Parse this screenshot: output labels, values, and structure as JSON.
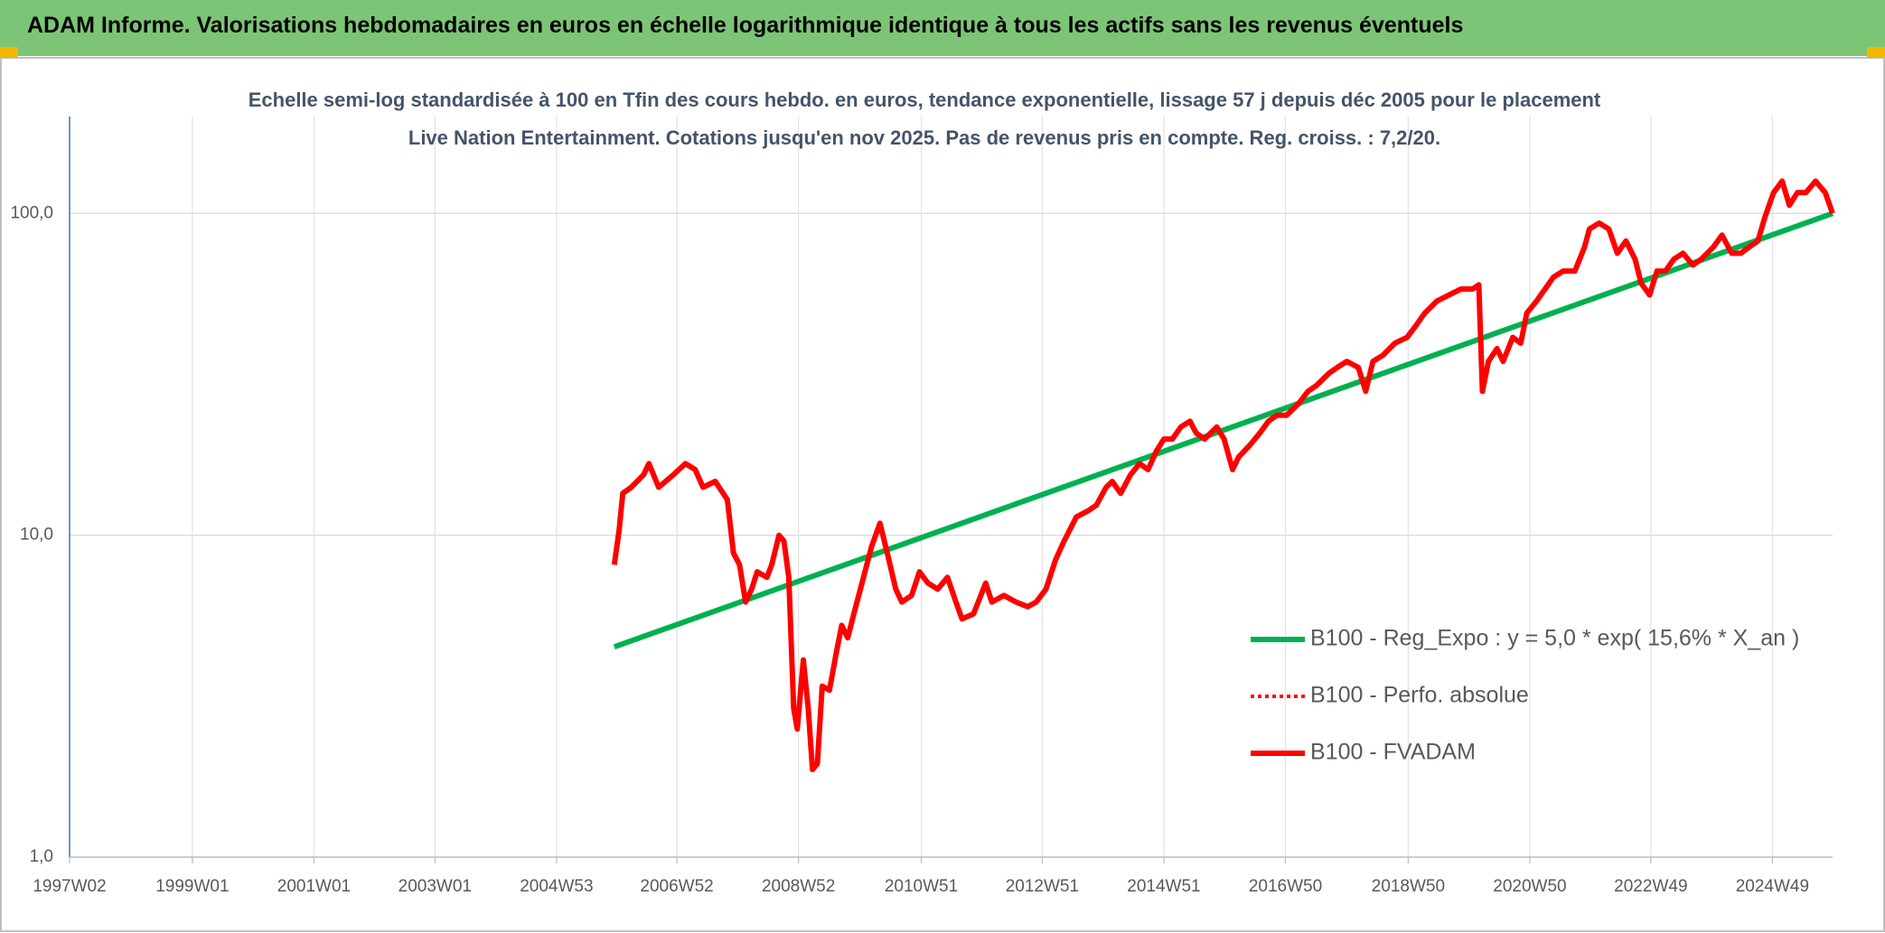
{
  "chart_data": {
    "type": "line",
    "title": "ADAM Informe. Valorisations hebdomadaires en euros en échelle logarithmique identique à tous les actifs sans les revenus éventuels",
    "subtitle": "Echelle semi-log standardisée à 100 en Tfin des cours hebdo. en euros, tendance exponentielle, lissage 57 j depuis déc 2005 pour le placement Live Nation Entertainment. Cotations jusqu'en nov 2025. Pas de revenus pris en compte. Reg. croiss. : 7,2/20.",
    "log_y": true,
    "grid": true,
    "legend": "right",
    "xlim": [
      1997.0,
      2026.0
    ],
    "ylim": [
      1,
      200
    ],
    "yticks": [
      {
        "value": 1,
        "label": "1,0"
      },
      {
        "value": 10,
        "label": "10,0"
      },
      {
        "value": 100,
        "label": "100,0"
      }
    ],
    "xticks": [
      {
        "value": 1997.0,
        "label": "1997W02"
      },
      {
        "value": 1999.02,
        "label": "1999W01"
      },
      {
        "value": 2001.02,
        "label": "2001W01"
      },
      {
        "value": 2003.01,
        "label": "2003W01"
      },
      {
        "value": 2005.01,
        "label": "2004W53"
      },
      {
        "value": 2006.99,
        "label": "2006W52"
      },
      {
        "value": 2008.99,
        "label": "2008W52"
      },
      {
        "value": 2011.01,
        "label": "2010W51"
      },
      {
        "value": 2013.0,
        "label": "2012W51"
      },
      {
        "value": 2015.0,
        "label": "2014W51"
      },
      {
        "value": 2017.0,
        "label": "2016W50"
      },
      {
        "value": 2019.02,
        "label": "2018W50"
      },
      {
        "value": 2021.02,
        "label": "2020W50"
      },
      {
        "value": 2023.01,
        "label": "2022W49"
      },
      {
        "value": 2025.01,
        "label": "2024W49"
      }
    ],
    "series": [
      {
        "name": "B100 - Reg_Expo : y = 5,0 * exp( 15,6% * X_an )",
        "color": "#00b050",
        "x": [
          2005.96,
          2026.0
        ],
        "values": [
          4.5,
          100
        ]
      },
      {
        "name": "B100 - Perfo. absolue",
        "color": "#ff0000",
        "dash": true
      },
      {
        "name": "B100 - FVADAM",
        "color": "#ff0000",
        "x": [
          2005.96,
          2006.04,
          2006.1,
          2006.24,
          2006.44,
          2006.53,
          2006.69,
          2006.93,
          2007.13,
          2007.29,
          2007.42,
          2007.62,
          2007.82,
          2007.92,
          2008.02,
          2008.12,
          2008.22,
          2008.31,
          2008.47,
          2008.55,
          2008.67,
          2008.75,
          2008.83,
          2008.91,
          2008.97,
          2009.07,
          2009.15,
          2009.22,
          2009.3,
          2009.38,
          2009.5,
          2009.6,
          2009.7,
          2009.8,
          2009.9,
          2010.06,
          2010.19,
          2010.33,
          2010.45,
          2010.59,
          2010.69,
          2010.85,
          2010.98,
          2011.12,
          2011.28,
          2011.44,
          2011.58,
          2011.68,
          2011.87,
          2012.07,
          2012.17,
          2012.37,
          2012.57,
          2012.76,
          2012.9,
          2013.06,
          2013.22,
          2013.36,
          2013.56,
          2013.75,
          2013.89,
          2014.05,
          2014.15,
          2014.29,
          2014.45,
          2014.6,
          2014.74,
          2014.88,
          2015.0,
          2015.14,
          2015.28,
          2015.43,
          2015.53,
          2015.67,
          2015.87,
          2015.99,
          2016.13,
          2016.23,
          2016.42,
          2016.58,
          2016.72,
          2016.86,
          2017.02,
          2017.22,
          2017.37,
          2017.51,
          2017.71,
          2017.85,
          2018.01,
          2018.2,
          2018.32,
          2018.44,
          2018.6,
          2018.8,
          2019.0,
          2019.15,
          2019.29,
          2019.49,
          2019.69,
          2019.89,
          2020.08,
          2020.18,
          2020.24,
          2020.34,
          2020.48,
          2020.58,
          2020.74,
          2020.87,
          2020.97,
          2021.13,
          2021.27,
          2021.41,
          2021.57,
          2021.76,
          2021.92,
          2022.0,
          2022.16,
          2022.32,
          2022.46,
          2022.6,
          2022.75,
          2022.85,
          2022.99,
          2023.11,
          2023.25,
          2023.39,
          2023.54,
          2023.7,
          2023.84,
          2024.04,
          2024.18,
          2024.34,
          2024.49,
          2024.63,
          2024.77,
          2024.89,
          2025.03,
          2025.17,
          2025.29,
          2025.42,
          2025.56,
          2025.72,
          2025.88,
          2026.0
        ],
        "values": [
          8.1,
          10.4,
          13.5,
          14.1,
          15.4,
          16.7,
          14.1,
          15.4,
          16.7,
          16,
          14.1,
          14.7,
          12.9,
          8.8,
          8.1,
          6.2,
          6.8,
          7.7,
          7.4,
          8.1,
          10,
          9.6,
          7.4,
          2.9,
          2.5,
          4.1,
          2.9,
          1.87,
          1.95,
          3.4,
          3.3,
          4.2,
          5.25,
          4.8,
          5.7,
          7.4,
          9.2,
          10.9,
          8.8,
          6.8,
          6.2,
          6.5,
          7.7,
          7.1,
          6.8,
          7.4,
          6.2,
          5.5,
          5.7,
          7.1,
          6.2,
          6.5,
          6.2,
          6.0,
          6.2,
          6.8,
          8.4,
          9.6,
          11.4,
          11.9,
          12.4,
          14.1,
          14.7,
          13.5,
          15.4,
          16.7,
          16,
          18.3,
          19.9,
          19.9,
          21.7,
          22.6,
          20.8,
          19.9,
          21.7,
          19.9,
          16,
          17.5,
          19.1,
          20.8,
          22.6,
          23.6,
          23.6,
          25.7,
          28,
          29.2,
          31.8,
          33.2,
          34.7,
          33.2,
          28,
          34.7,
          36.2,
          39.5,
          41.2,
          44.9,
          49,
          53.4,
          55.8,
          58.2,
          58.2,
          60,
          28,
          34.7,
          38,
          34.7,
          41.2,
          39.5,
          49,
          53.4,
          58.2,
          63.4,
          66.2,
          66.2,
          78.6,
          89.4,
          93.3,
          89.4,
          75.2,
          82.1,
          72.1,
          60.7,
          55.8,
          66.2,
          66.2,
          72.1,
          75.2,
          69.1,
          72.1,
          78.6,
          85.6,
          75.2,
          75.2,
          78.6,
          82.1,
          97.6,
          116,
          126,
          106,
          116,
          116,
          126,
          116,
          100
        ]
      }
    ]
  }
}
